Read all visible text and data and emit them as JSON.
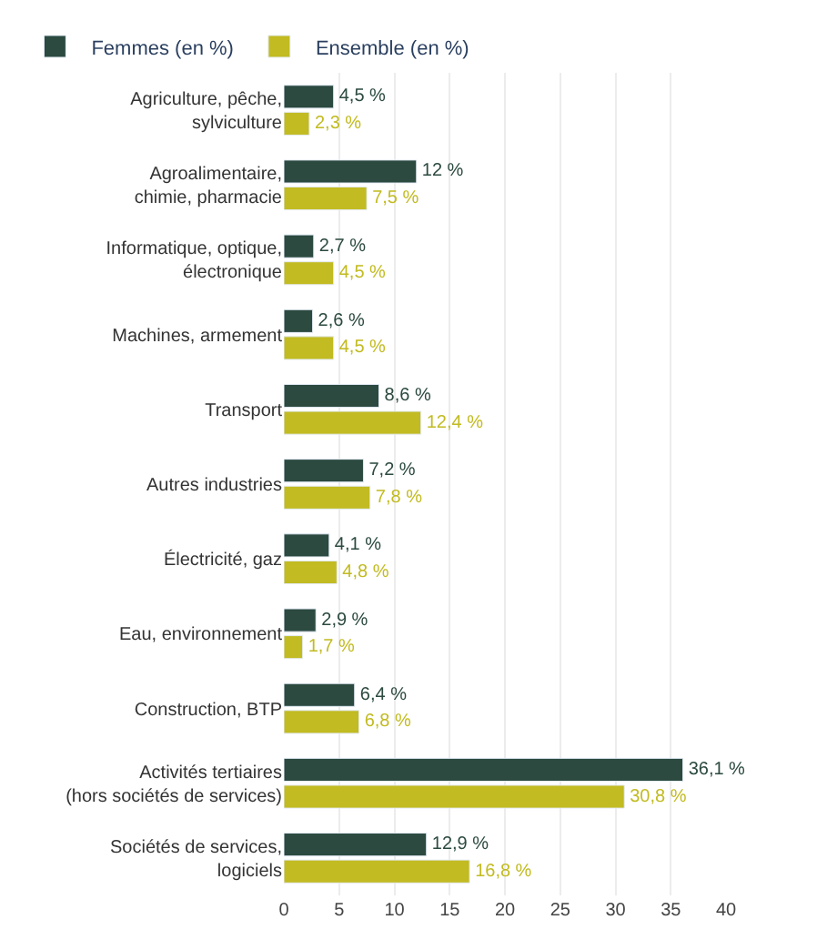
{
  "chart_data": {
    "type": "bar",
    "orientation": "horizontal",
    "categories": [
      "Agriculture, pêche,\nsylviculture",
      "Agroalimentaire,\nchimie, pharmacie",
      "Informatique, optique,\nélectronique",
      "Machines, armement",
      "Transport",
      "Autres industries",
      "Électricité, gaz",
      "Eau, environnement",
      "Construction, BTP",
      "Activités tertiaires\n(hors sociétés de services)",
      "Sociétés de services,\nlogiciels"
    ],
    "series": [
      {
        "name": "Femmes (en %)",
        "color": "#2c4a40",
        "values": [
          4.5,
          12,
          2.7,
          2.6,
          8.6,
          7.2,
          4.1,
          2.9,
          6.4,
          36.1,
          12.9
        ],
        "value_labels": [
          "4,5 %",
          "12 %",
          "2,7 %",
          "2,6 %",
          "8,6 %",
          "7,2 %",
          "4,1 %",
          "2,9 %",
          "6,4 %",
          "36,1 %",
          "12,9 %"
        ]
      },
      {
        "name": "Ensemble (en %)",
        "color": "#c2bb22",
        "values": [
          2.3,
          7.5,
          4.5,
          4.5,
          12.4,
          7.8,
          4.8,
          1.7,
          6.8,
          30.8,
          16.8
        ],
        "value_labels": [
          "2,3 %",
          "7,5 %",
          "4,5 %",
          "4,5 %",
          "12,4 %",
          "7,8 %",
          "4,8 %",
          "1,7 %",
          "6,8 %",
          "30,8 %",
          "16,8 %"
        ]
      }
    ],
    "xlim": [
      0,
      40
    ],
    "xticks": [
      0,
      5,
      10,
      15,
      20,
      25,
      30,
      35,
      40
    ],
    "grid": "x",
    "legend": "top left"
  }
}
